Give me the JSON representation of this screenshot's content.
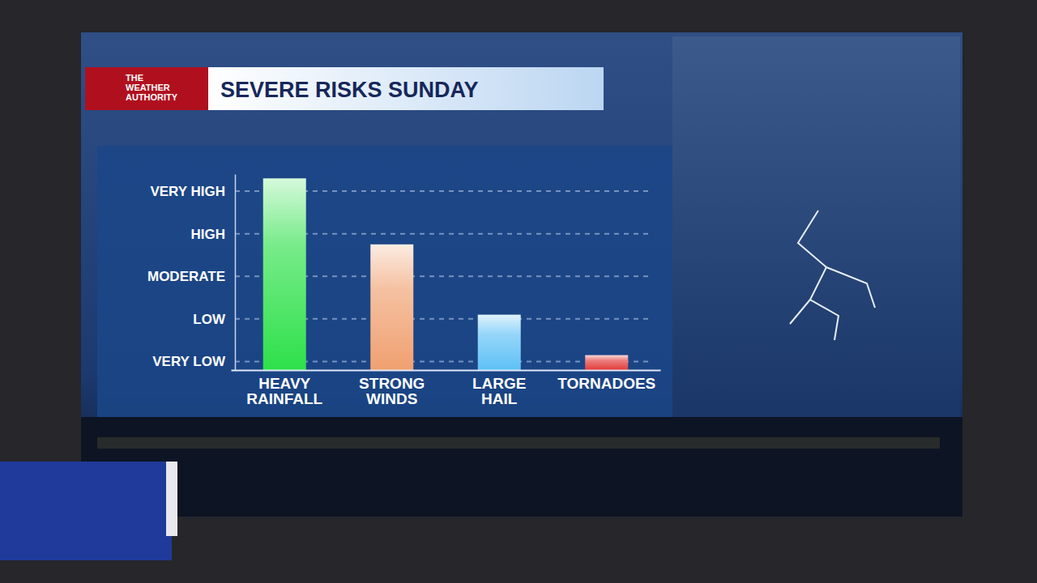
{
  "chart_data": {
    "type": "bar",
    "title": "SEVERE RISKS SUNDAY",
    "annotations": [
      "THE WEATHER AUTHORITY"
    ],
    "categories": [
      "HEAVY RAINFALL",
      "STRONG WINDS",
      "LARGE HAIL",
      "TORNADOES"
    ],
    "values": [
      5.3,
      3.75,
      2.1,
      1.15
    ],
    "colors": [
      "#2ee04a",
      "#f0a070",
      "#5ec0f6",
      "#e23a3a"
    ],
    "ylim": [
      0.8,
      5.4
    ],
    "yticks": [
      {
        "value": 1,
        "label": "VERY LOW"
      },
      {
        "value": 2,
        "label": "LOW"
      },
      {
        "value": 3,
        "label": "MODERATE"
      },
      {
        "value": 4,
        "label": "HIGH"
      },
      {
        "value": 5,
        "label": "VERY HIGH"
      }
    ],
    "grid": true
  }
}
